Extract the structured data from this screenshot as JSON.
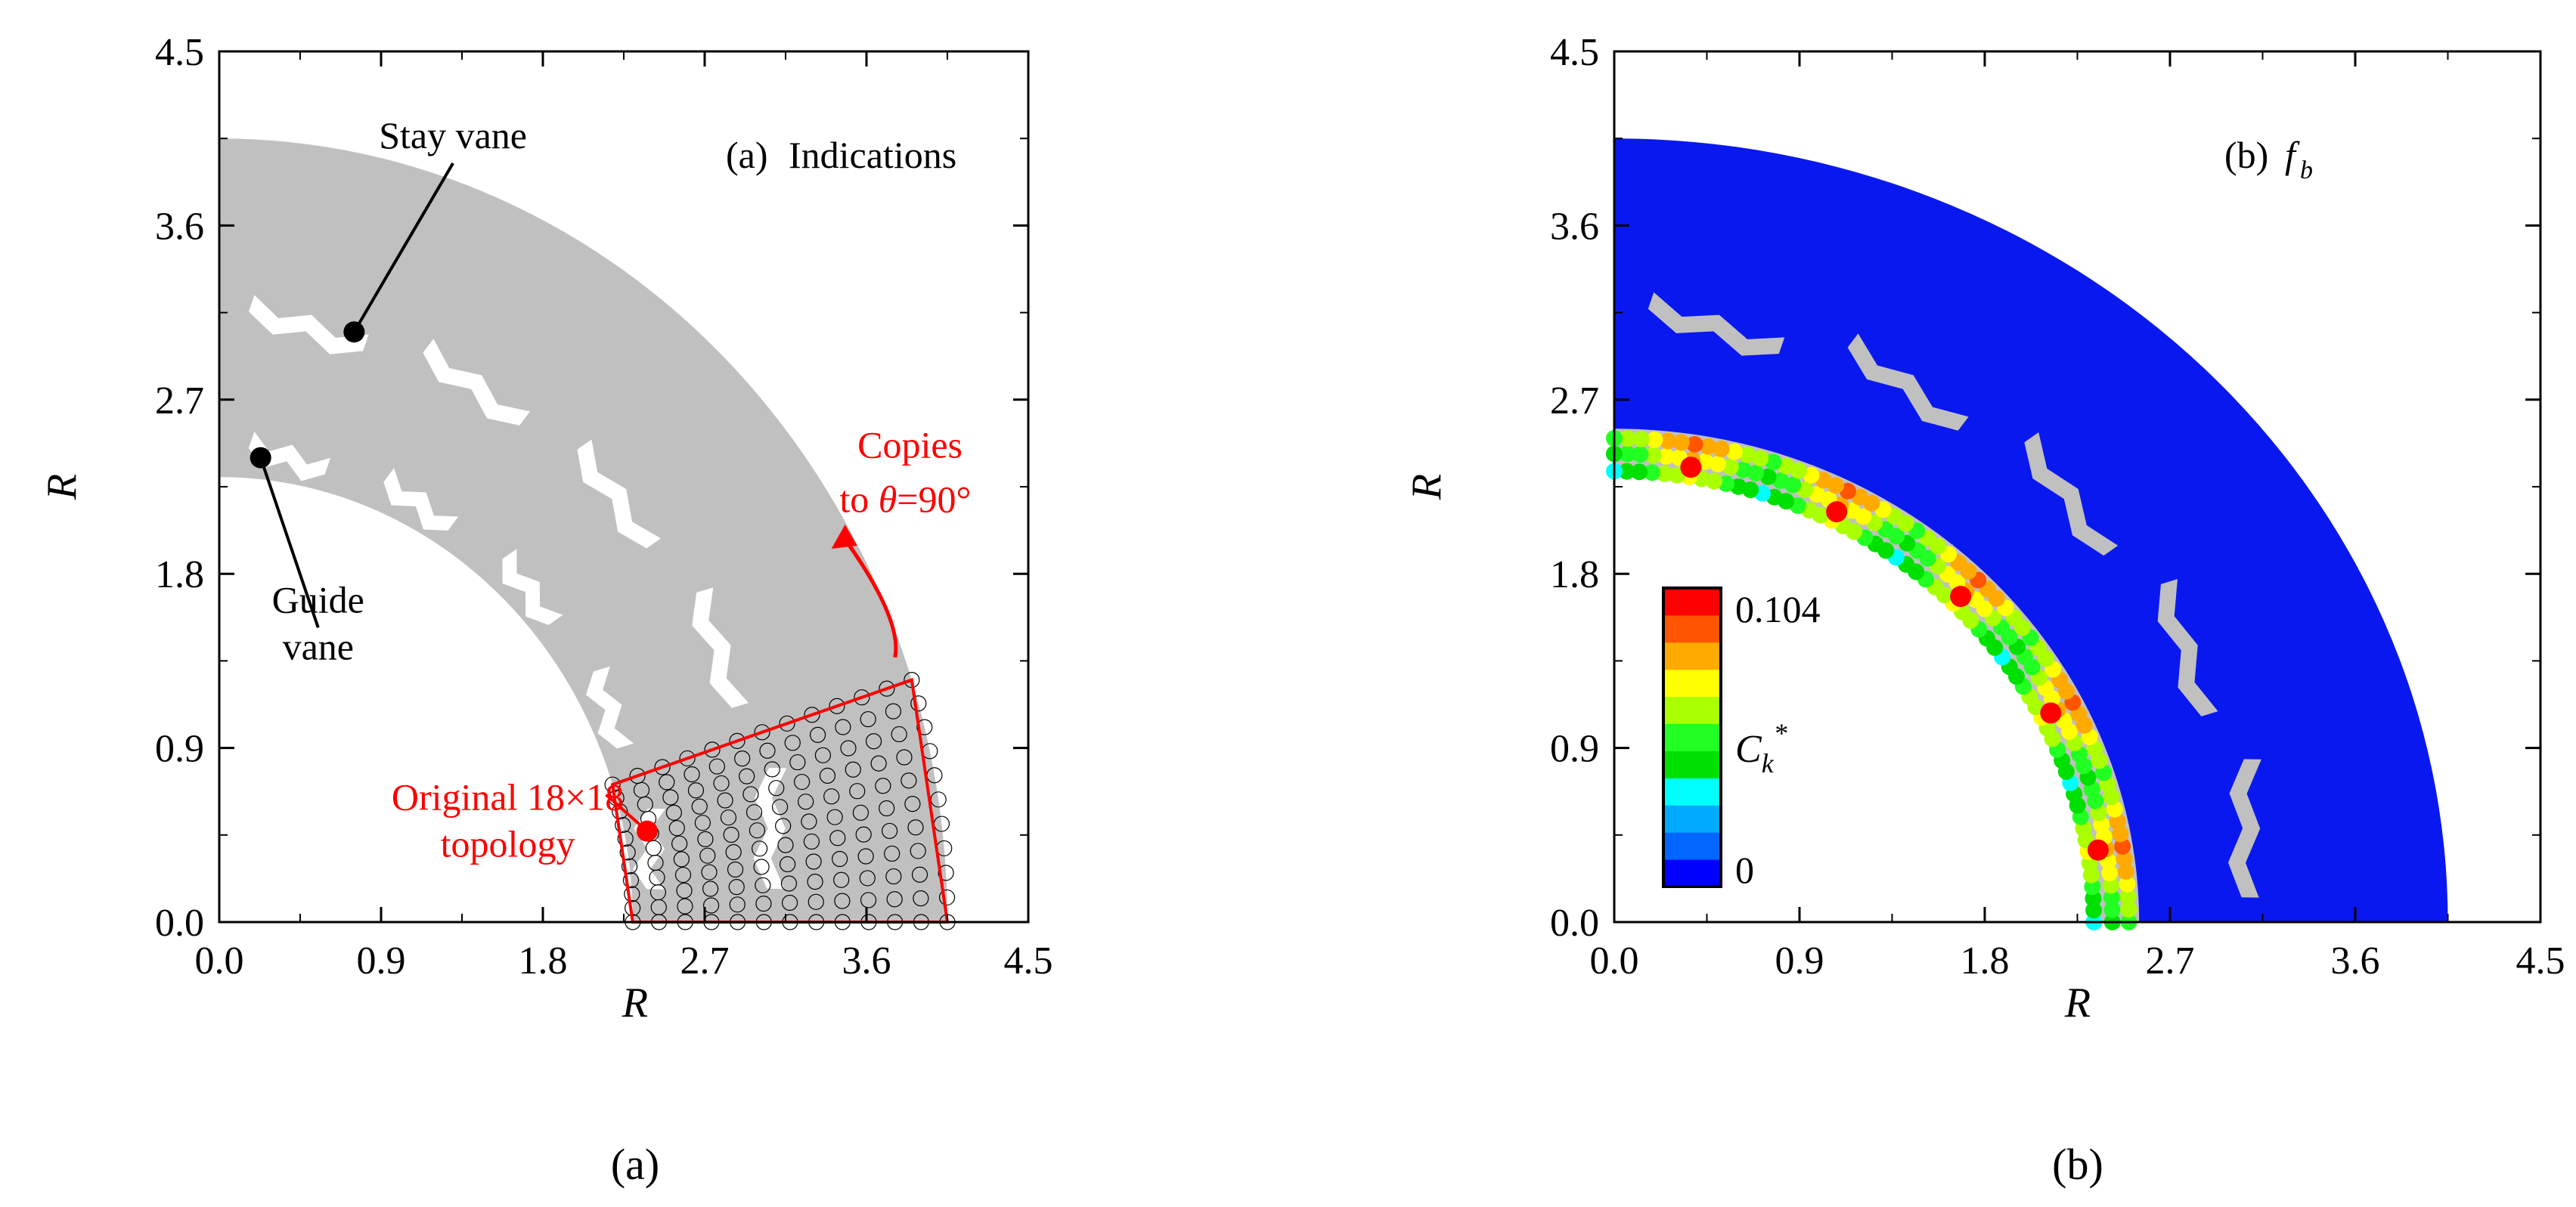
{
  "colors": {
    "region_gray": "#c0c0c0",
    "region_blue": "#0a18f0",
    "annotation_red": "#ff0000",
    "axis_black": "#000000",
    "mesh_black": "#000000"
  },
  "chart_data": [
    {
      "type": "scatter",
      "panel_caption": "(a)",
      "title_tag": "(a)",
      "title": "Indications",
      "xlabel": "R",
      "ylabel": "R",
      "xlim": [
        0,
        4.5
      ],
      "ylim": [
        0,
        4.5
      ],
      "xticks": [
        0.0,
        0.9,
        1.8,
        2.7,
        3.6,
        4.5
      ],
      "yticks": [
        0.0,
        0.9,
        1.8,
        2.7,
        3.6,
        4.5
      ],
      "tick_labels": [
        "0.0",
        "0.9",
        "1.8",
        "2.7",
        "3.6",
        "4.5"
      ],
      "grid": false,
      "domain": {
        "inner_radius": 2.3,
        "outer_radius": 4.05,
        "theta_range_deg": [
          0,
          90
        ]
      },
      "guide_vane_radius": 2.38,
      "stay_vane_radius": 3.05,
      "annotations": [
        {
          "label": "Stay vane",
          "point": [
            0.75,
            3.05
          ],
          "text_pos": [
            1.3,
            4.0
          ],
          "color": "black"
        },
        {
          "label_lines": [
            "Guide",
            "vane"
          ],
          "point": [
            0.23,
            2.4
          ],
          "text_pos": [
            0.55,
            1.6
          ],
          "color": "black"
        },
        {
          "label_lines": [
            "Original 18×18",
            "topology"
          ],
          "point": [
            2.38,
            0.47
          ],
          "text_pos": [
            1.1,
            0.58
          ],
          "color": "red"
        }
      ],
      "copies_label_lines": [
        "Copies",
        "to θ=90°"
      ],
      "copies_label": {
        "line1": "Copies",
        "line2_prefix": "to ",
        "line2_symbol": "θ",
        "line2_suffix": "=90°"
      },
      "original_topology": {
        "r_range": [
          2.3,
          4.05
        ],
        "theta_range_deg": [
          0,
          18
        ],
        "grid": "18×18"
      }
    },
    {
      "type": "scatter",
      "panel_caption": "(b)",
      "title_tag": "(b)",
      "title_main": "f",
      "title_sub": "b",
      "xlabel": "R",
      "ylabel": "R",
      "xlim": [
        0,
        4.5
      ],
      "ylim": [
        0,
        4.5
      ],
      "xticks": [
        0.0,
        0.9,
        1.8,
        2.7,
        3.6,
        4.5
      ],
      "yticks": [
        0.0,
        0.9,
        1.8,
        2.7,
        3.6,
        4.5
      ],
      "tick_labels": [
        "0.0",
        "0.9",
        "1.8",
        "2.7",
        "3.6",
        "4.5"
      ],
      "grid": false,
      "colorbar": {
        "label_main": "C",
        "label_sub": "k",
        "label_sup": "*",
        "max_label": "0.104",
        "min_label": "0",
        "range": [
          0,
          0.104
        ],
        "colors": [
          "#0000ff",
          "#0066ff",
          "#00aaff",
          "#00ffff",
          "#00e000",
          "#22ff22",
          "#aaff00",
          "#ffff00",
          "#ffaa00",
          "#ff5500",
          "#ff0000"
        ]
      },
      "high_value_points": [
        {
          "theta_deg": 9,
          "r": 2.38,
          "value": 0.104
        },
        {
          "theta_deg": 27,
          "r": 2.38,
          "value": 0.104
        },
        {
          "theta_deg": 45,
          "r": 2.38,
          "value": 0.104
        },
        {
          "theta_deg": 63,
          "r": 2.38,
          "value": 0.104
        },
        {
          "theta_deg": 81,
          "r": 2.38,
          "value": 0.104
        }
      ]
    }
  ]
}
